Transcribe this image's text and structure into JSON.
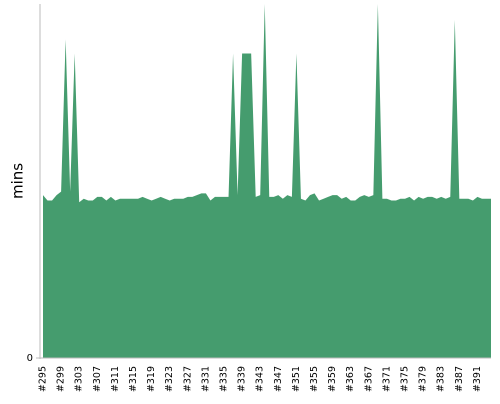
{
  "chart_data": {
    "type": "area",
    "ylabel": "mins",
    "color": "#459c6e",
    "categories": [
      "#295",
      null,
      null,
      null,
      "#299",
      null,
      null,
      null,
      "#303",
      null,
      null,
      null,
      "#307",
      null,
      null,
      null,
      "#311",
      null,
      null,
      null,
      "#315",
      null,
      null,
      null,
      "#319",
      null,
      null,
      null,
      "#323",
      null,
      null,
      null,
      "#327",
      null,
      null,
      null,
      "#331",
      null,
      null,
      null,
      "#335",
      null,
      null,
      null,
      "#339",
      null,
      null,
      null,
      "#343",
      null,
      null,
      null,
      "#347",
      null,
      null,
      null,
      "#351",
      null,
      null,
      null,
      "#355",
      null,
      null,
      null,
      "#359",
      null,
      null,
      null,
      "#363",
      null,
      null,
      null,
      "#367",
      null,
      null,
      null,
      "#371",
      null,
      null,
      null,
      "#375",
      null,
      null,
      null,
      "#379",
      null,
      null,
      null,
      "#383",
      null,
      null,
      null,
      "#387",
      null,
      null,
      null,
      "#391",
      null,
      null,
      null
    ],
    "values": [
      46,
      44.5,
      44.5,
      46,
      47,
      90,
      47,
      86,
      44,
      45,
      44.5,
      44.5,
      45.5,
      45.5,
      44.5,
      45.5,
      44.5,
      45,
      45,
      45,
      45,
      45,
      45.5,
      45,
      44.5,
      45,
      45.5,
      45,
      44.5,
      45,
      45,
      45,
      45.5,
      45.5,
      46,
      46.5,
      46.5,
      44.5,
      45.5,
      45.5,
      45.5,
      45.5,
      86,
      46,
      86,
      86,
      86,
      45.5,
      46,
      100,
      45.5,
      45.5,
      46,
      45,
      46,
      45.5,
      86,
      45,
      44.5,
      46,
      46.5,
      44.5,
      45,
      45.5,
      46,
      46,
      45,
      45.5,
      44.5,
      44.5,
      45.5,
      46,
      45.5,
      46,
      100,
      45,
      45,
      44.5,
      44.5,
      45,
      45,
      45.5,
      44.5,
      45.5,
      45,
      45.5,
      45.5,
      45,
      45.5,
      45,
      45.5,
      95.5,
      45,
      45,
      45,
      44.5,
      45.5,
      45,
      45,
      45
    ],
    "ylim": [
      0,
      100
    ],
    "yticks": [
      0
    ]
  }
}
